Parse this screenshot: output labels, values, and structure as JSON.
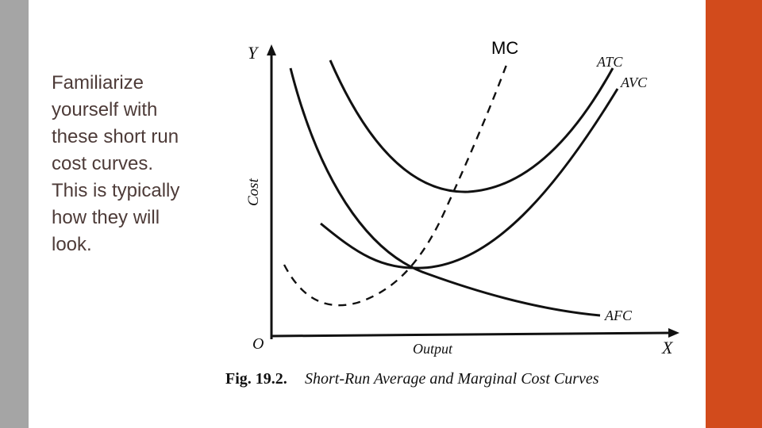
{
  "text": {
    "body": "Familiarize yourself with these short run cost curves. This is typically how they will look.",
    "mc_label": "MC"
  },
  "figure": {
    "y_axis_label": "Y",
    "x_axis_label": "X",
    "origin_label": "O",
    "y_title": "Cost",
    "x_title": "Output",
    "curve_labels": {
      "atc": "ATC",
      "avc": "AVC",
      "afc": "AFC"
    },
    "caption_number": "Fig. 19.2.",
    "caption_text": "Short-Run Average and Marginal Cost Curves"
  },
  "colors": {
    "left_bar": "#a5a5a5",
    "right_bar": "#d24b1c",
    "body_text": "#4d3b38"
  }
}
